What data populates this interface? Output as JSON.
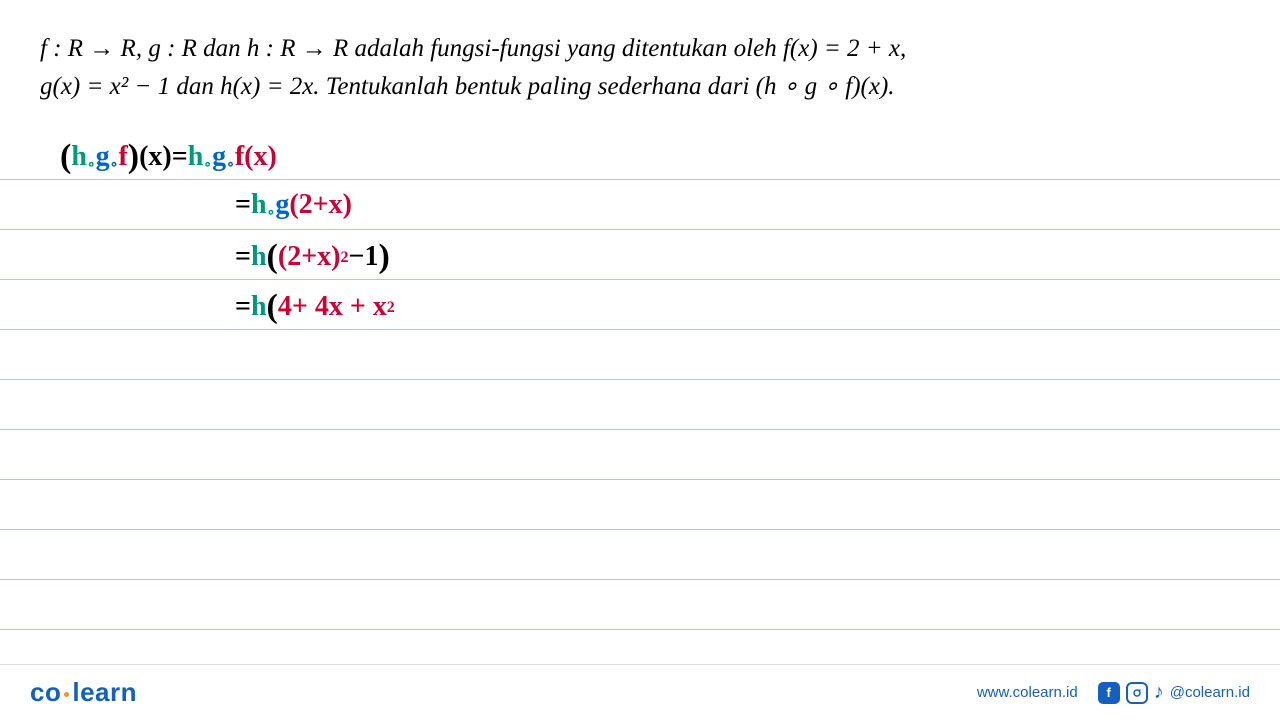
{
  "problem": {
    "line1_part1": "f : R → R,   g : R dan h : R → R adalah fungsi-fungsi yang ditentukan oleh ",
    "line1_fx": "f(x) = 2 + x,",
    "line2": "g(x) = x² − 1 dan h(x) = 2x. Tentukanlah bentuk paling sederhana dari (h ∘ g ∘ f)(x).",
    "text_color": "#000000",
    "font_size": 25
  },
  "handwriting": {
    "colors": {
      "h": "#00997a",
      "g": "#0066cc",
      "f": "#cc0033",
      "black": "#000000",
      "red": "#cc0033"
    },
    "font_size": 28,
    "line_height": 50,
    "lines": [
      {
        "indent": 0,
        "segments": [
          {
            "text": "(",
            "cls": "hw-black paren"
          },
          {
            "text": "h",
            "cls": "hw-h"
          },
          {
            "text": "∘",
            "cls": "hw-h sub-o"
          },
          {
            "text": " g",
            "cls": "hw-g"
          },
          {
            "text": "∘",
            "cls": "hw-g sub-o"
          },
          {
            "text": " f",
            "cls": "hw-f"
          },
          {
            "text": ")",
            "cls": "hw-black paren"
          },
          {
            "text": " (x) ",
            "cls": "hw-black"
          },
          {
            "text": "= ",
            "cls": "hw-black"
          },
          {
            "text": "h",
            "cls": "hw-h"
          },
          {
            "text": "∘",
            "cls": "hw-h sub-o"
          },
          {
            "text": " g",
            "cls": "hw-g"
          },
          {
            "text": "∘",
            "cls": "hw-g sub-o"
          },
          {
            "text": " f(x)",
            "cls": "hw-f"
          }
        ]
      },
      {
        "indent": 1,
        "segments": [
          {
            "text": "= ",
            "cls": "hw-black"
          },
          {
            "text": "h",
            "cls": "hw-h"
          },
          {
            "text": "∘",
            "cls": "hw-h sub-o"
          },
          {
            "text": " g",
            "cls": "hw-g"
          },
          {
            "text": " (2+x)",
            "cls": "hw-red"
          }
        ]
      },
      {
        "indent": 1,
        "segments": [
          {
            "text": "= ",
            "cls": "hw-black"
          },
          {
            "text": "h",
            "cls": "hw-h"
          },
          {
            "text": "(",
            "cls": "hw-black paren"
          },
          {
            "text": "(2+x)",
            "cls": "hw-red"
          },
          {
            "text": "2",
            "cls": "hw-red sup"
          },
          {
            "text": " −1",
            "cls": "hw-black"
          },
          {
            "text": ")",
            "cls": "hw-black paren"
          }
        ]
      },
      {
        "indent": 1,
        "segments": [
          {
            "text": "= ",
            "cls": "hw-black"
          },
          {
            "text": "h",
            "cls": "hw-h"
          },
          {
            "text": "(",
            "cls": "hw-black paren"
          },
          {
            "text": " 4+ 4x + x",
            "cls": "hw-red"
          },
          {
            "text": "2",
            "cls": "hw-red sup"
          }
        ]
      }
    ]
  },
  "paper": {
    "line_color": "#b8c5d6",
    "line_count": 10,
    "line_height": 50
  },
  "footer": {
    "logo_co": "co",
    "logo_learn": "learn",
    "logo_color": "#1560bd",
    "dot_color": "#f7941e",
    "website": "www.colearn.id",
    "website_color": "#1560bd",
    "handle": "@colearn.id",
    "handle_color": "#1560bd",
    "icon_bg": "#1560bd"
  }
}
